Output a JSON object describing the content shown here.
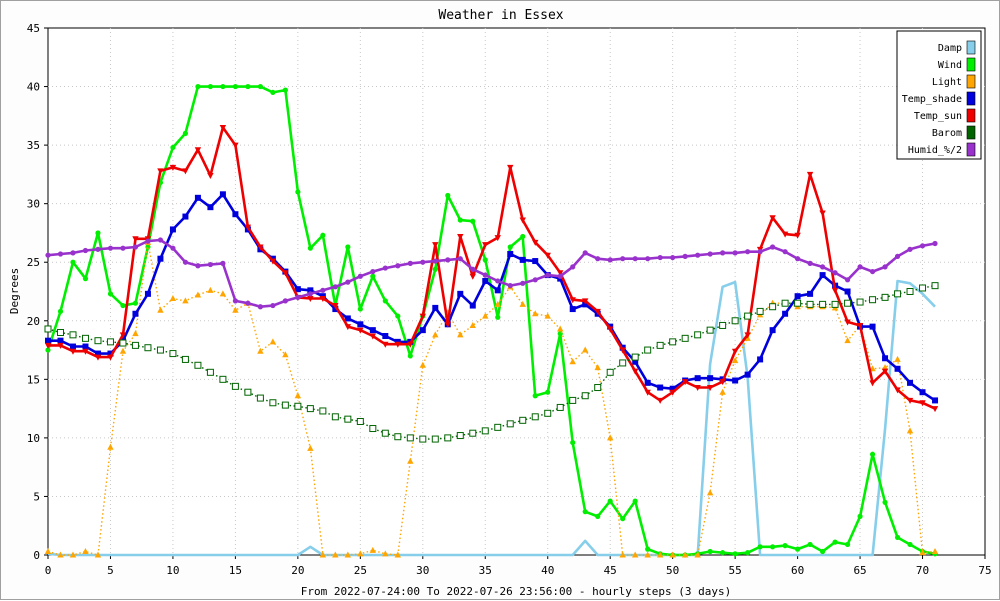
{
  "chart_data": {
    "type": "line",
    "title": "Weather in Essex",
    "ylabel": "Degrees",
    "xlabel": "From 2022-07-24:00 To 2022-07-26 23:56:00 - hourly steps (3 days)",
    "xlim": [
      0,
      75
    ],
    "ylim": [
      0,
      45
    ],
    "xticks": [
      0,
      5,
      10,
      15,
      20,
      25,
      30,
      35,
      40,
      45,
      50,
      55,
      60,
      65,
      70,
      75
    ],
    "yticks": [
      0,
      5,
      10,
      15,
      20,
      25,
      30,
      35,
      40,
      45
    ],
    "grid": true,
    "legend_position": "top-right",
    "series": [
      {
        "name": "Damp",
        "color": "#87ceeb",
        "marker": "none",
        "style": "solid",
        "values": [
          0.1,
          0,
          0,
          0,
          0,
          0,
          0,
          0,
          0,
          0,
          0,
          0,
          0,
          0,
          0,
          0,
          0,
          0,
          0,
          0,
          0,
          0.7,
          0,
          0,
          0,
          0,
          0,
          0,
          0,
          0,
          0,
          0,
          0,
          0,
          0,
          0,
          0,
          0,
          0,
          0,
          0,
          0,
          0,
          1.2,
          0,
          0,
          0,
          0,
          0,
          0,
          0,
          0,
          0,
          16.3,
          22.9,
          23.3,
          15.2,
          0,
          0,
          0,
          0,
          0,
          0,
          0,
          0,
          0,
          0,
          10.8,
          23.4,
          23.2,
          22.3,
          21.2
        ]
      },
      {
        "name": "Wind",
        "color": "#00ee00",
        "marker": "dot",
        "style": "solid",
        "values": [
          17.5,
          20.8,
          25,
          23.6,
          27.5,
          22.3,
          21.3,
          21.5,
          26.3,
          31.8,
          34.8,
          36,
          40,
          40,
          40,
          40,
          40,
          40,
          39.5,
          39.7,
          31,
          26.2,
          27.3,
          21.3,
          26.3,
          21,
          23.8,
          21.7,
          20.4,
          17,
          20.4,
          24.4,
          30.7,
          28.6,
          28.5,
          25.2,
          20.3,
          26.3,
          27.2,
          13.6,
          13.9,
          18.9,
          9.6,
          3.7,
          3.3,
          4.6,
          3.1,
          4.6,
          0.5,
          0.1,
          0,
          0,
          0.1,
          0.3,
          0.2,
          0.1,
          0.2,
          0.7,
          0.7,
          0.8,
          0.5,
          0.9,
          0.3,
          1.1,
          0.9,
          3.3,
          8.6,
          4.5,
          1.5,
          0.9,
          0.3,
          0.1
        ]
      },
      {
        "name": "Light",
        "color": "#ffa500",
        "marker": "triangle",
        "style": "dotted",
        "values": [
          0.3,
          0,
          0,
          0.3,
          0,
          9.2,
          17.4,
          18.9,
          26.7,
          20.9,
          21.9,
          21.7,
          22.2,
          22.6,
          22.3,
          20.9,
          21.5,
          17.4,
          18.2,
          17.1,
          13.6,
          9.1,
          0,
          0,
          0,
          0.1,
          0.4,
          0.1,
          0,
          8,
          16.2,
          18.8,
          20.7,
          18.8,
          19.6,
          20.4,
          21.4,
          22.9,
          21.4,
          20.6,
          20.4,
          19.3,
          16.5,
          17.5,
          16,
          10,
          0,
          0,
          0,
          0,
          0,
          0,
          0,
          5.3,
          13.9,
          16.6,
          18.5,
          20.5,
          21.5,
          21.5,
          21.2,
          21.2,
          21.2,
          21.1,
          18.3,
          19.6,
          15.9,
          16,
          16.7,
          10.6,
          0.2,
          0.3
        ]
      },
      {
        "name": "Temp_shade",
        "color": "#0000dd",
        "marker": "square",
        "style": "solid",
        "values": [
          18.3,
          18.3,
          17.8,
          17.8,
          17.2,
          17.2,
          18.3,
          20.6,
          22.3,
          25.3,
          27.8,
          28.9,
          30.5,
          29.7,
          30.8,
          29.1,
          27.8,
          26.1,
          25.3,
          24.2,
          22.7,
          22.6,
          22.1,
          21,
          20.2,
          19.7,
          19.2,
          18.7,
          18.2,
          18.2,
          19.2,
          21.1,
          19.7,
          22.3,
          21.3,
          23.4,
          22.6,
          25.7,
          25.2,
          25.1,
          23.9,
          23.6,
          21,
          21.4,
          20.6,
          19.5,
          17.7,
          16.5,
          14.7,
          14.3,
          14.2,
          14.9,
          15.1,
          15.1,
          15,
          14.9,
          15.4,
          16.7,
          19.2,
          20.6,
          22.1,
          22.3,
          23.9,
          23,
          22.5,
          19.5,
          19.5,
          16.8,
          15.9,
          14.7,
          13.9,
          13.2
        ]
      },
      {
        "name": "Temp_sun",
        "color": "#ee0000",
        "marker": "down-triangle",
        "style": "solid",
        "values": [
          17.9,
          17.9,
          17.4,
          17.4,
          16.9,
          16.9,
          18.8,
          27,
          27,
          32.8,
          33.1,
          32.8,
          34.6,
          32.4,
          36.5,
          35,
          28,
          26.3,
          25.1,
          24.1,
          22,
          21.9,
          21.9,
          21.3,
          19.5,
          19.2,
          18.7,
          18,
          18,
          18,
          20.4,
          26.5,
          19.7,
          27.2,
          23.8,
          26.5,
          27.1,
          33.1,
          28.6,
          26.7,
          25.6,
          24.1,
          21.8,
          21.7,
          20.8,
          19.3,
          17.5,
          15.7,
          13.9,
          13.2,
          13.9,
          14.8,
          14.3,
          14.3,
          14.8,
          17.4,
          18.8,
          26.1,
          28.8,
          27.4,
          27.3,
          32.5,
          29.2,
          22.6,
          19.9,
          19.6,
          14.7,
          15.7,
          14.1,
          13.2,
          13,
          12.5
        ]
      },
      {
        "name": "Barom",
        "color": "#006400",
        "marker": "hollow-square",
        "style": "dotted",
        "values": [
          19.3,
          19,
          18.8,
          18.5,
          18.3,
          18.2,
          18.1,
          17.9,
          17.7,
          17.5,
          17.2,
          16.7,
          16.2,
          15.6,
          15,
          14.4,
          13.9,
          13.4,
          13,
          12.8,
          12.7,
          12.5,
          12.3,
          11.8,
          11.6,
          11.4,
          10.8,
          10.4,
          10.1,
          10,
          9.9,
          9.9,
          10,
          10.2,
          10.4,
          10.6,
          10.9,
          11.2,
          11.5,
          11.8,
          12.1,
          12.6,
          13.2,
          13.6,
          14.3,
          15.6,
          16.4,
          16.9,
          17.5,
          17.9,
          18.2,
          18.5,
          18.8,
          19.2,
          19.6,
          20,
          20.4,
          20.8,
          21.2,
          21.5,
          21.5,
          21.4,
          21.4,
          21.4,
          21.5,
          21.6,
          21.8,
          22,
          22.3,
          22.5,
          22.8,
          23
        ]
      },
      {
        "name": "Humid_%/2",
        "color": "#9932cc",
        "marker": "dot",
        "style": "solid",
        "values": [
          25.6,
          25.7,
          25.8,
          26,
          26.1,
          26.2,
          26.2,
          26.3,
          26.8,
          26.9,
          26.2,
          25,
          24.7,
          24.8,
          24.9,
          21.7,
          21.5,
          21.2,
          21.3,
          21.7,
          22,
          22.3,
          22.6,
          22.9,
          23.3,
          23.8,
          24.2,
          24.5,
          24.7,
          24.9,
          25,
          25.1,
          25.2,
          25.3,
          24.4,
          23.9,
          23.4,
          23,
          23.2,
          23.5,
          23.9,
          23.8,
          24.6,
          25.8,
          25.3,
          25.2,
          25.3,
          25.3,
          25.3,
          25.4,
          25.4,
          25.5,
          25.6,
          25.7,
          25.8,
          25.8,
          25.9,
          25.9,
          26.3,
          25.9,
          25.3,
          24.9,
          24.6,
          24.1,
          23.5,
          24.6,
          24.2,
          24.6,
          25.5,
          26.1,
          26.4,
          26.6
        ]
      }
    ]
  }
}
